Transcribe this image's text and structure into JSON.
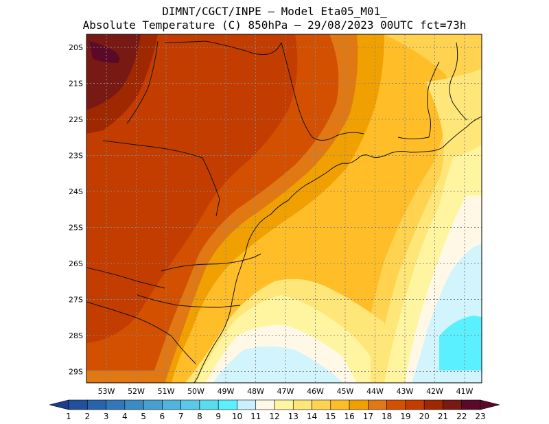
{
  "header": {
    "line1": "DIMNT/CGCT/INPE –  Model Eta05_M01_",
    "line2": "Absolute Temperature (C) 850hPa –  29/08/2023 00UTC fct=73h"
  },
  "axes": {
    "lat_labels": [
      "20S",
      "21S",
      "22S",
      "23S",
      "24S",
      "25S",
      "26S",
      "27S",
      "28S",
      "29S"
    ],
    "lon_labels": [
      "53W",
      "52W",
      "51W",
      "50W",
      "49W",
      "48W",
      "47W",
      "46W",
      "45W",
      "44W",
      "43W",
      "42W",
      "41W"
    ]
  },
  "colorbar": {
    "labels": [
      "1",
      "2",
      "3",
      "4",
      "5",
      "6",
      "7",
      "8",
      "9",
      "10",
      "11",
      "12",
      "13",
      "14",
      "15",
      "16",
      "17",
      "18",
      "19",
      "20",
      "21",
      "22",
      "23"
    ],
    "colors": [
      "#1e3c8c",
      "#23509c",
      "#2864ac",
      "#3278b8",
      "#3c8cc4",
      "#46a0d0",
      "#50b4dc",
      "#5ac8e8",
      "#5adcf0",
      "#5af0ff",
      "#c8f0ff",
      "#fff8e6",
      "#fff5a0",
      "#ffe678",
      "#ffd250",
      "#ffbe28",
      "#f0a000",
      "#e07814",
      "#d25000",
      "#c33c00",
      "#a02800",
      "#781914",
      "#5a0a28"
    ]
  },
  "map_colors": {
    "c11": "#d2f4fc",
    "c12": "#fff8e6",
    "c13": "#fff5a0",
    "c14": "#ffe678",
    "c15": "#ffd250",
    "c16": "#ffbe28",
    "c17": "#f0a000",
    "c18": "#e07814",
    "c19": "#d25000",
    "c20": "#c33c00",
    "c21": "#a02800",
    "c22": "#781914",
    "c23": "#5a0a28",
    "c10": "#5af0ff"
  }
}
